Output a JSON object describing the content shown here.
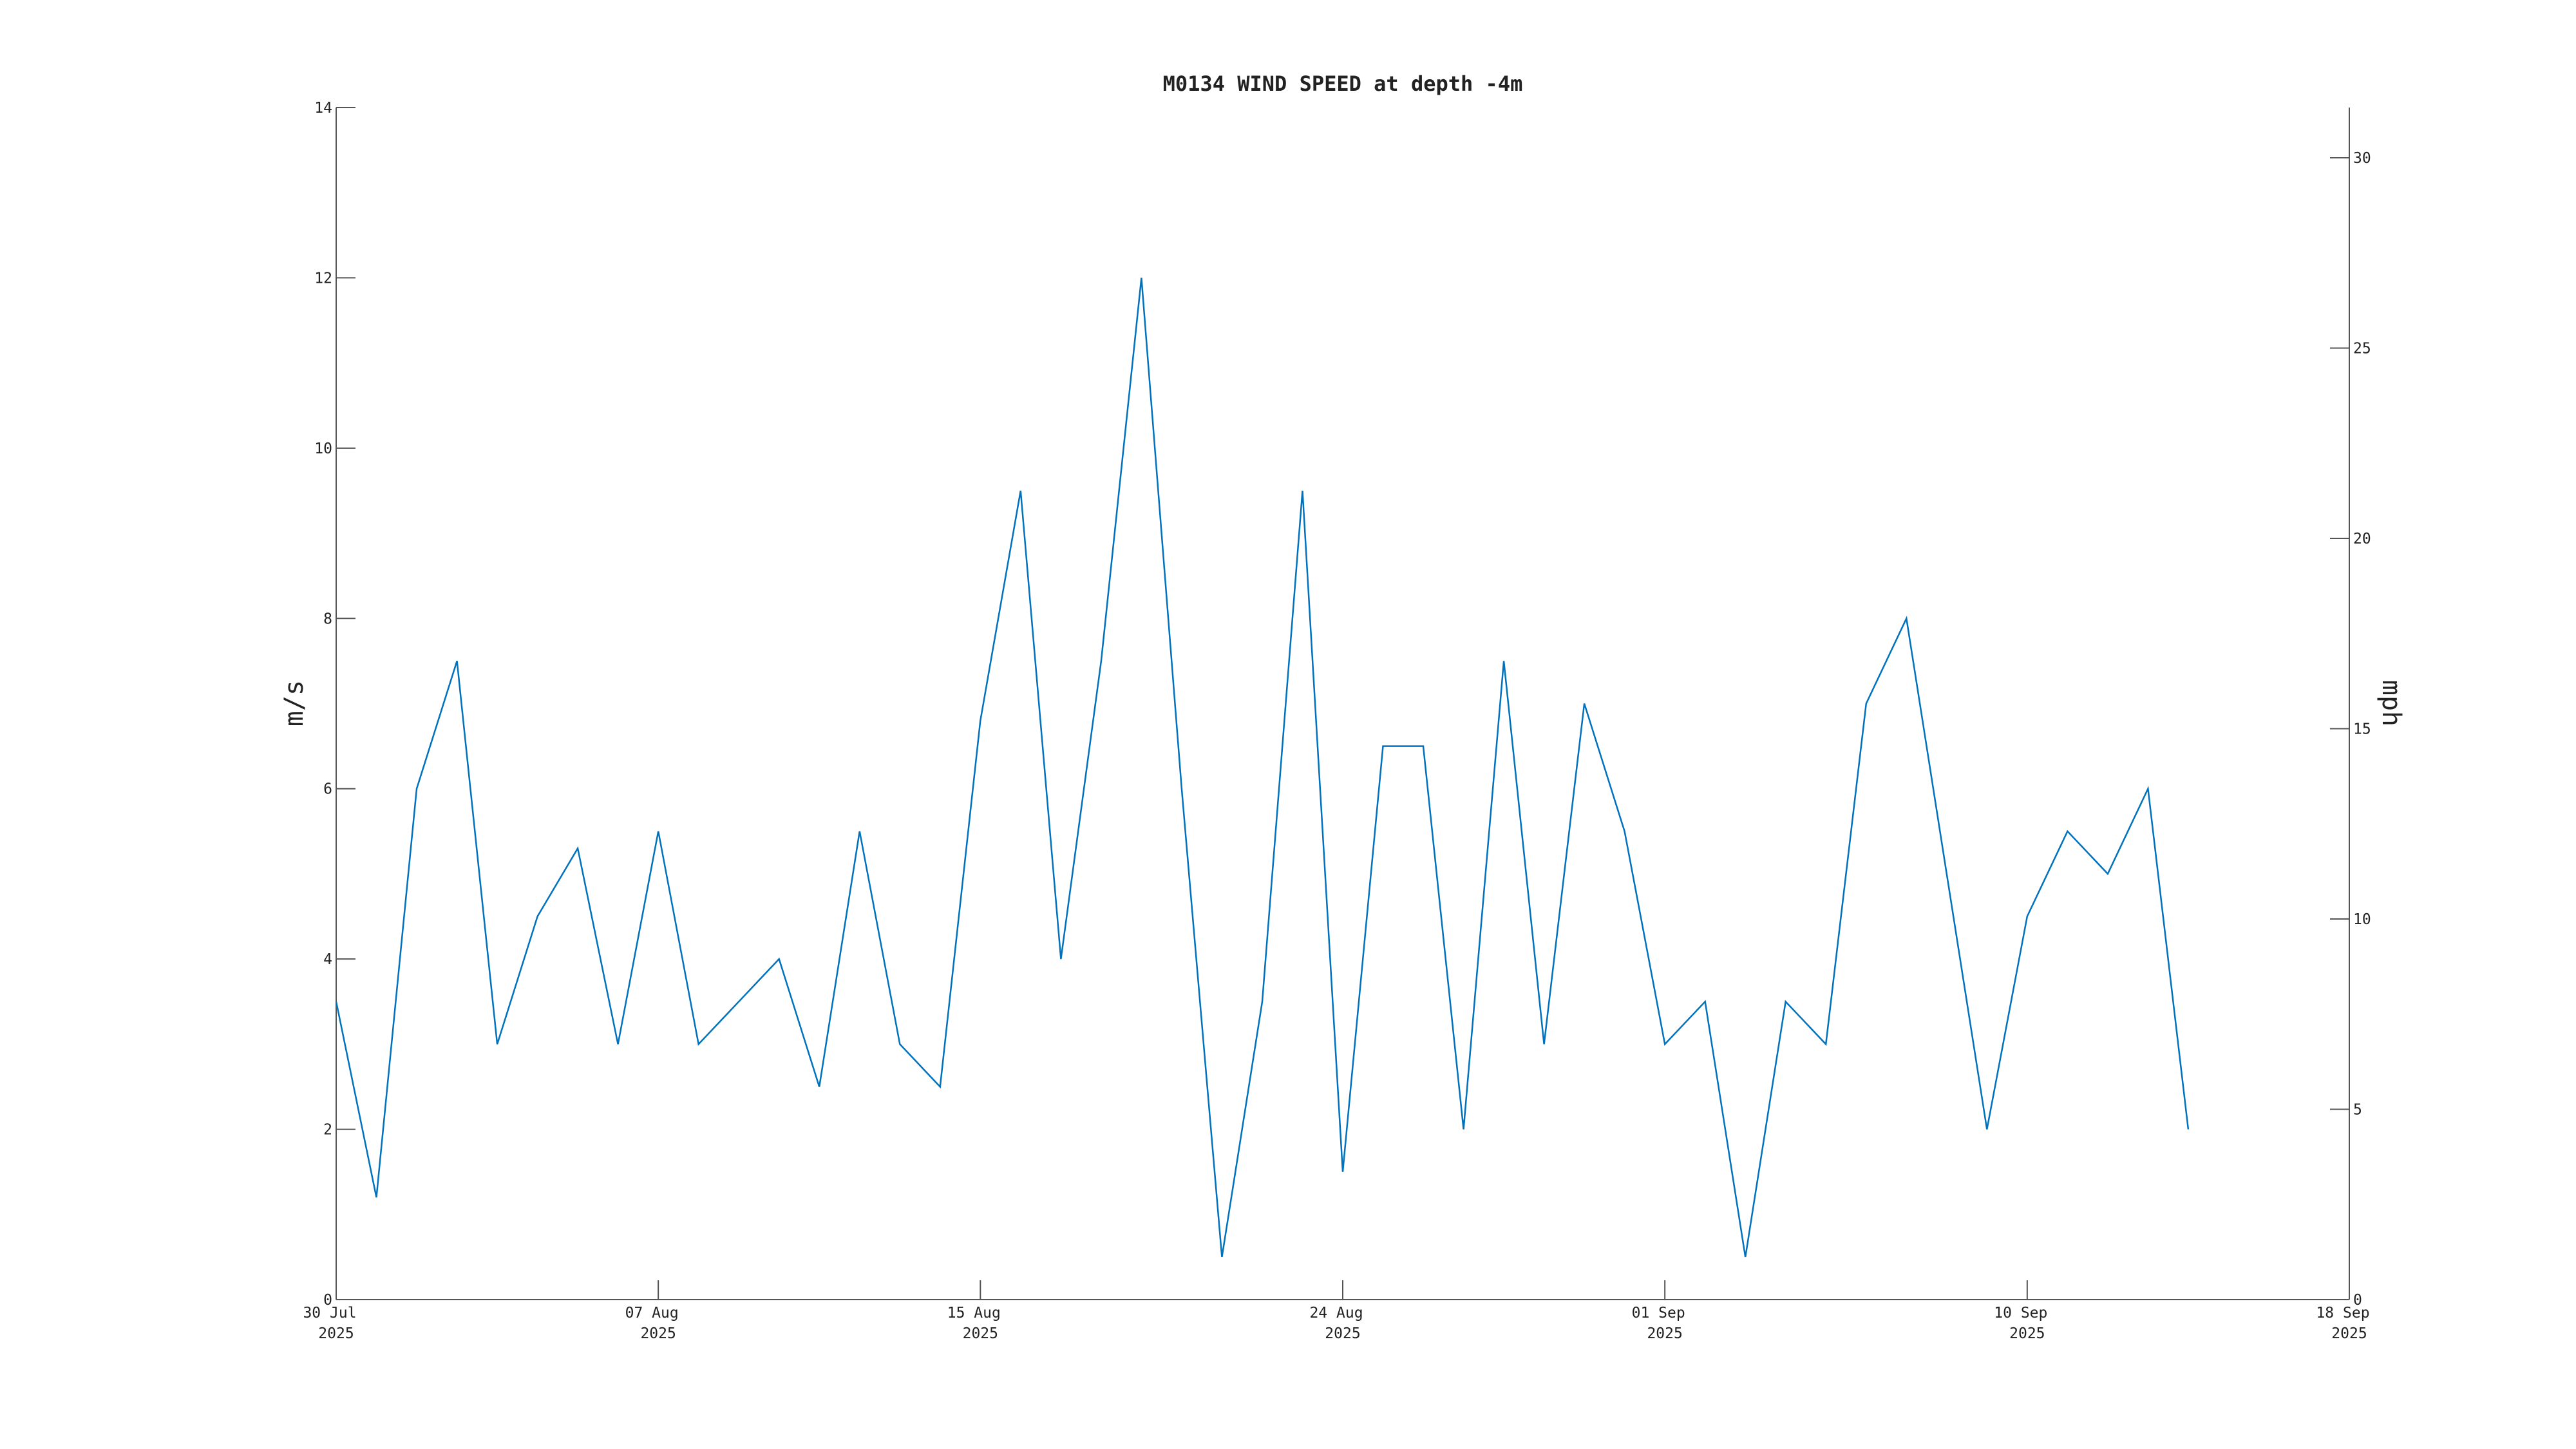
{
  "chart_data": {
    "type": "line",
    "title": "M0134 WIND SPEED at depth -4m",
    "ylabel": "m/s",
    "y2label": "mph",
    "x": [
      "2025-07-30",
      "2025-07-31",
      "2025-08-01",
      "2025-08-02",
      "2025-08-03",
      "2025-08-04",
      "2025-08-05",
      "2025-08-06",
      "2025-08-07",
      "2025-08-08",
      "2025-08-09",
      "2025-08-10",
      "2025-08-11",
      "2025-08-12",
      "2025-08-13",
      "2025-08-14",
      "2025-08-15",
      "2025-08-16",
      "2025-08-17",
      "2025-08-18",
      "2025-08-19",
      "2025-08-20",
      "2025-08-21",
      "2025-08-22",
      "2025-08-23",
      "2025-08-24",
      "2025-08-25",
      "2025-08-26",
      "2025-08-27",
      "2025-08-28",
      "2025-08-29",
      "2025-08-30",
      "2025-08-31",
      "2025-09-01",
      "2025-09-02",
      "2025-09-03",
      "2025-09-04",
      "2025-09-05",
      "2025-09-06",
      "2025-09-07",
      "2025-09-08",
      "2025-09-09",
      "2025-09-10",
      "2025-09-11",
      "2025-09-12",
      "2025-09-13",
      "2025-09-14"
    ],
    "series": [
      {
        "name": "wind speed",
        "color": "#0072bd",
        "values": [
          3.5,
          1.2,
          6.0,
          7.5,
          3.0,
          4.5,
          5.3,
          3.0,
          5.5,
          3.0,
          3.5,
          4.0,
          2.5,
          5.5,
          3.0,
          2.5,
          6.8,
          9.5,
          4.0,
          7.5,
          12.0,
          6.0,
          0.5,
          3.5,
          9.5,
          1.5,
          6.5,
          6.5,
          2.0,
          7.5,
          3.0,
          7.0,
          5.5,
          3.0,
          3.5,
          0.5,
          3.5,
          3.0,
          7.0,
          8.0,
          5.0,
          2.0,
          4.5,
          5.5,
          5.0,
          6.0,
          2.0
        ]
      }
    ],
    "xlim": [
      "2025-07-30",
      "2025-09-18"
    ],
    "xticks": [
      {
        "value": "2025-07-30",
        "label": "30 Jul\n2025"
      },
      {
        "value": "2025-08-07",
        "label": "07 Aug\n2025"
      },
      {
        "value": "2025-08-15",
        "label": "15 Aug\n2025"
      },
      {
        "value": "2025-08-24",
        "label": "24 Aug\n2025"
      },
      {
        "value": "2025-09-01",
        "label": "01 Sep\n2025"
      },
      {
        "value": "2025-09-10",
        "label": "10 Sep\n2025"
      },
      {
        "value": "2025-09-18",
        "label": "18 Sep\n2025"
      }
    ],
    "ylim": [
      0,
      14
    ],
    "yticks": [
      0,
      2,
      4,
      6,
      8,
      10,
      12,
      14
    ],
    "y2lim": [
      0,
      31.32
    ],
    "y2ticks": [
      0,
      5,
      10,
      15,
      20,
      25,
      30
    ],
    "grid": false
  }
}
